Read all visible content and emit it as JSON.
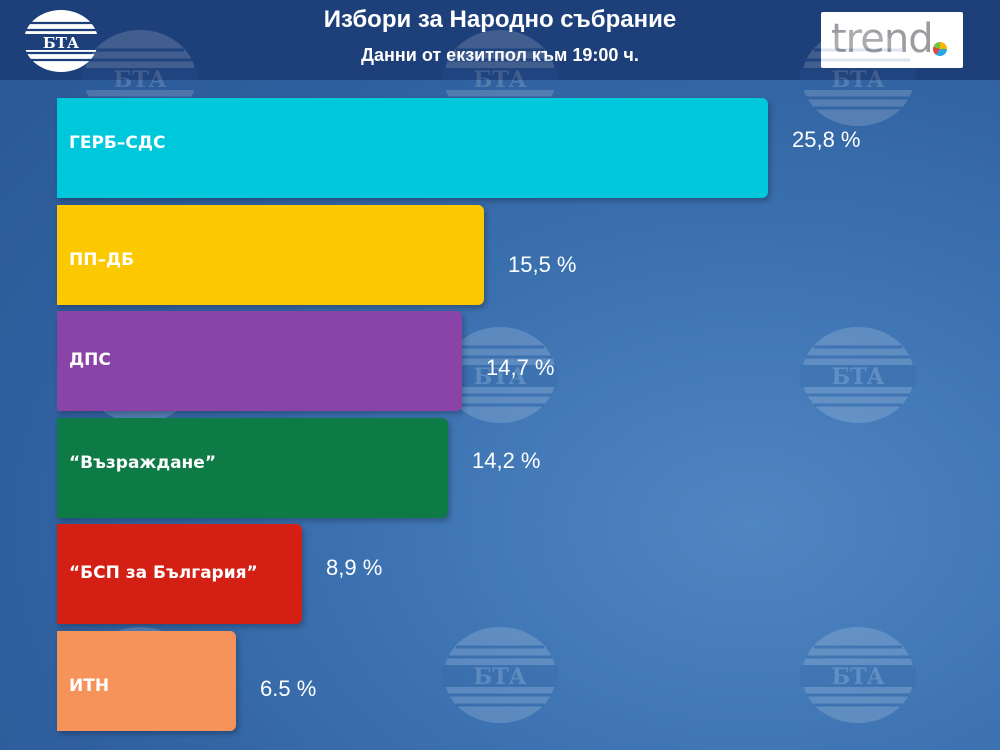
{
  "header": {
    "title": "Избори за Народно събрание",
    "subtitle": "Данни от екзитпол към 19:00 ч.",
    "left_logo_text": "БТА",
    "right_logo_text": "trend"
  },
  "watermark_text": "БТА",
  "colors": {
    "header_bg": "#1d3f7a",
    "background": "#3d73b2"
  },
  "chart_data": {
    "type": "bar",
    "orientation": "horizontal",
    "title": "Избори за Народно събрание",
    "subtitle": "Данни от екзитпол към 19:00 ч.",
    "categories": [
      "ГЕРБ–СДС",
      "ПП–ДБ",
      "ДПС",
      "“Възраждане”",
      "“БСП за България”",
      "ИТН"
    ],
    "values": [
      25.8,
      15.5,
      14.7,
      14.2,
      8.9,
      6.5
    ],
    "value_labels": [
      "25,8 %",
      "15,5 %",
      "14,7  %",
      "14,2 %",
      "8,9 %",
      "6.5 %"
    ],
    "colors": [
      "#00c8dc",
      "#fcc800",
      "#8a44a8",
      "#0e7a46",
      "#d41f14",
      "#f5935a"
    ],
    "xlim": [
      0,
      25.8
    ],
    "grid": false,
    "legend": "none"
  }
}
